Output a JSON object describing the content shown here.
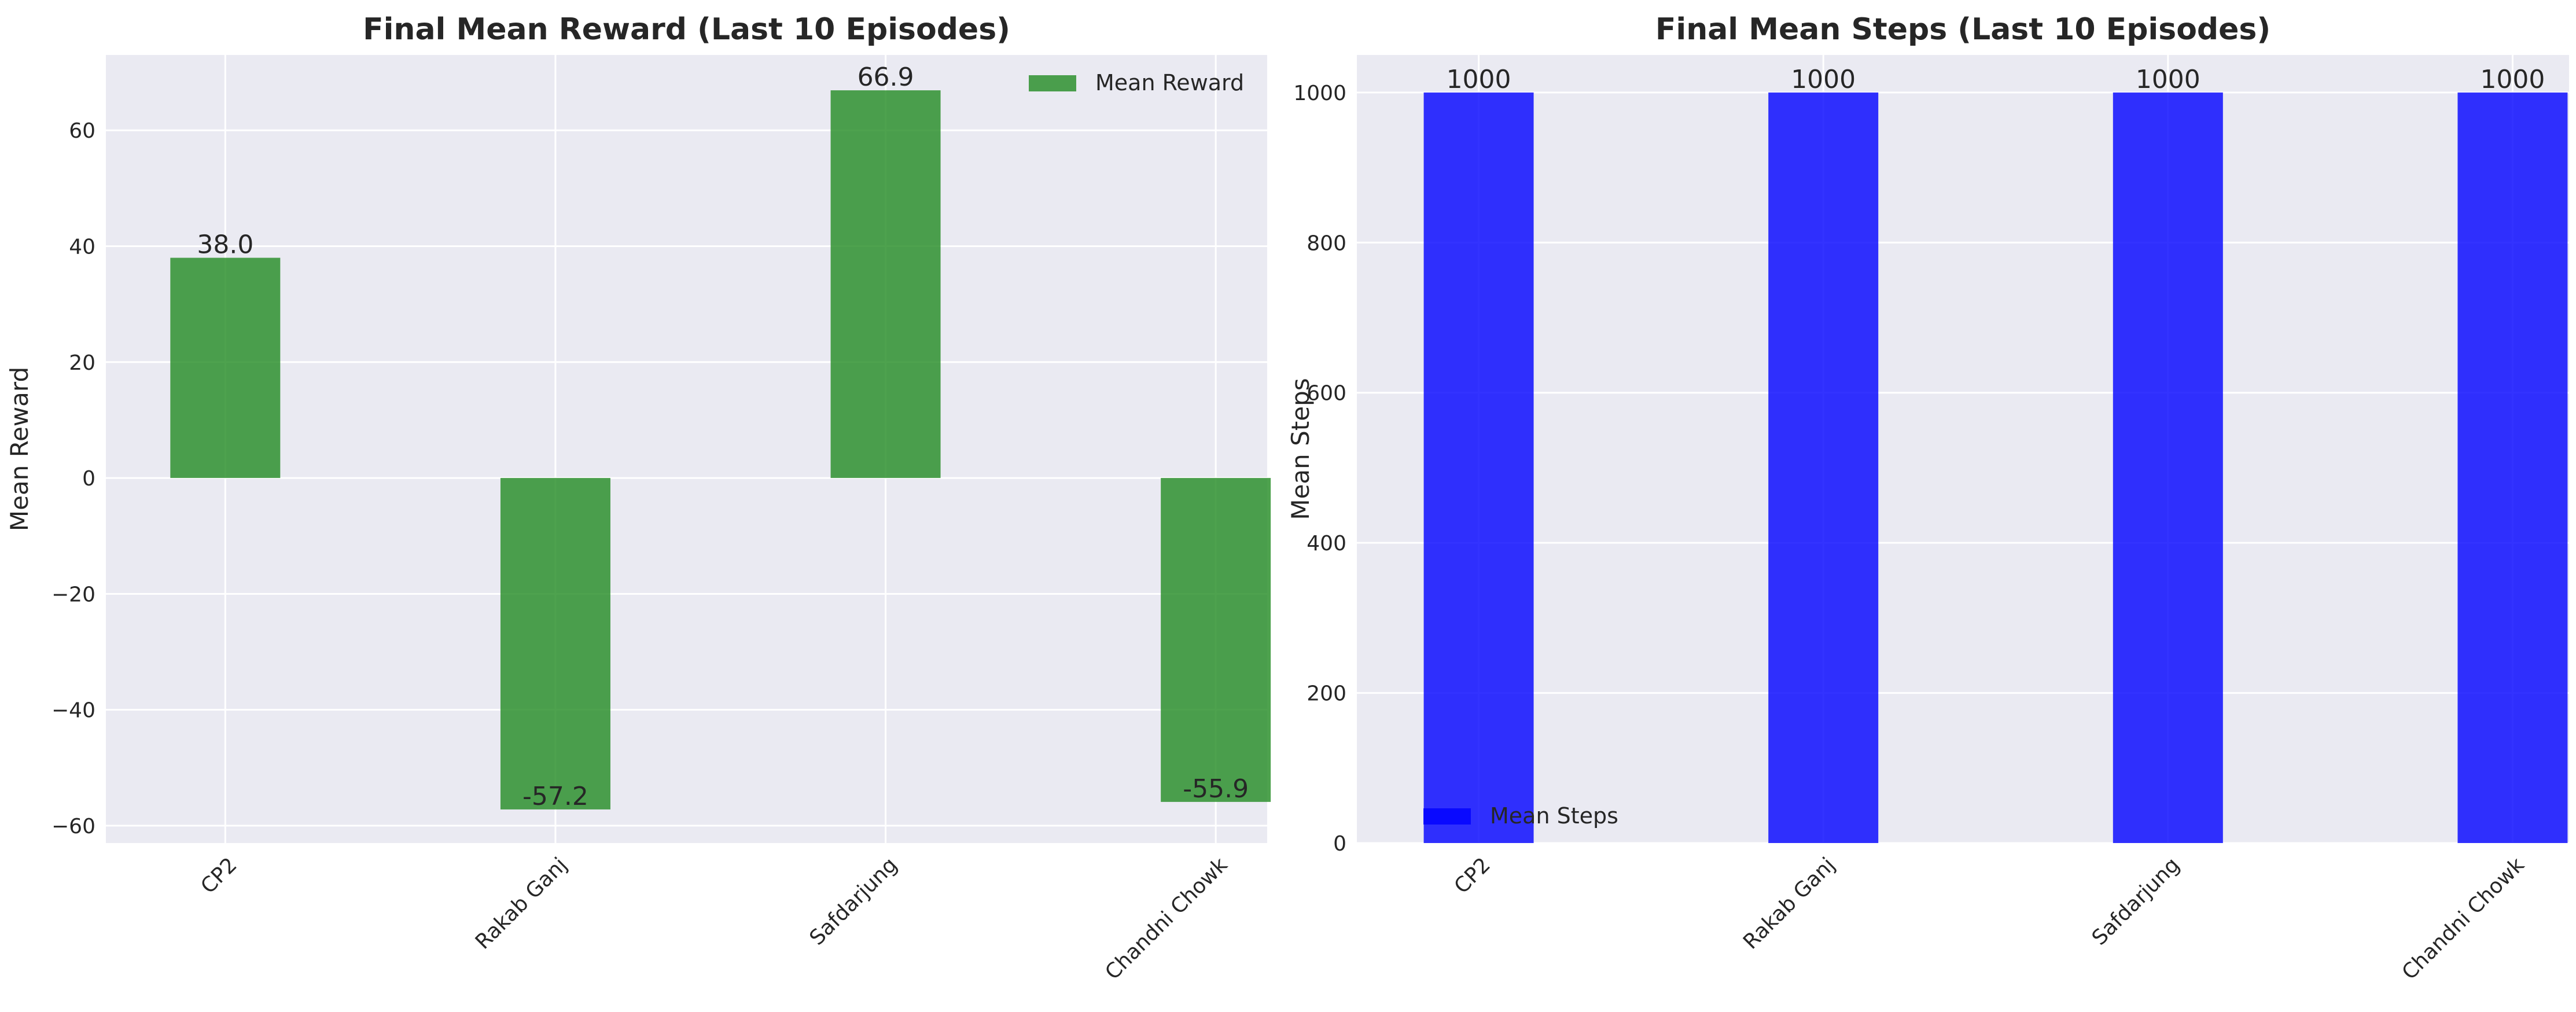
{
  "chart_data": [
    {
      "type": "bar",
      "title": "Final Mean Reward (Last 10 Episodes)",
      "xlabel": "",
      "ylabel": "Mean Reward",
      "categories": [
        "CP2",
        "Rakab Ganj",
        "Safdarjung",
        "Chandni Chowk"
      ],
      "series": [
        {
          "name": "Mean Reward",
          "values": [
            38.0,
            -57.2,
            66.9,
            -55.9
          ],
          "color": "#228b22"
        }
      ],
      "data_labels": [
        "38.0",
        "-57.2",
        "66.9",
        "-55.9"
      ],
      "ylim": [
        -63,
        73
      ],
      "yticks": [
        60,
        40,
        20,
        0,
        -20,
        -40,
        -60
      ],
      "ytick_labels": [
        "60",
        "40",
        "20",
        "0",
        "−20",
        "−40",
        "−60"
      ],
      "grid": true,
      "legend": "top-right"
    },
    {
      "type": "bar",
      "title": "Final Mean Steps (Last 10 Episodes)",
      "xlabel": "",
      "ylabel": "Mean Steps",
      "categories": [
        "CP2",
        "Rakab Ganj",
        "Safdarjung",
        "Chandni Chowk"
      ],
      "series": [
        {
          "name": "Mean Steps",
          "values": [
            1000,
            1000,
            1000,
            1000
          ],
          "color": "#0000ff"
        }
      ],
      "data_labels": [
        "1000",
        "1000",
        "1000",
        "1000"
      ],
      "ylim": [
        0,
        1050
      ],
      "yticks": [
        1000,
        800,
        600,
        400,
        200,
        0
      ],
      "ytick_labels": [
        "1000",
        "800",
        "600",
        "400",
        "200",
        "0"
      ],
      "grid": true,
      "legend": "bottom-left"
    }
  ]
}
